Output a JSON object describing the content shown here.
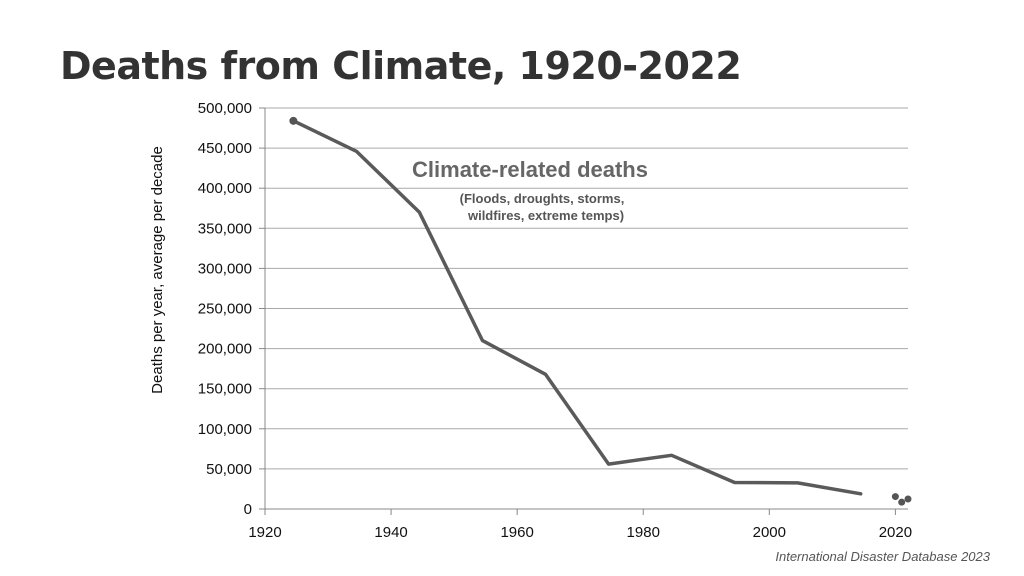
{
  "slide": {
    "title": "Deaths from Climate, 1920-2022",
    "source": "International Disaster Database 2023"
  },
  "annotation": {
    "title": "Climate-related deaths",
    "subtitle_line1": "(Floods, droughts, storms,",
    "subtitle_line2": "wildfires, extreme temps)"
  },
  "colors": {
    "line": "#5a5a5a",
    "grid": "#aaaaaa",
    "points": "#555555"
  },
  "chart_data": {
    "type": "line",
    "title": "Deaths from Climate, 1920-2022",
    "xlabel": "",
    "ylabel": "Deaths per year, average per decade",
    "xlim": [
      1920,
      2022
    ],
    "ylim": [
      0,
      500000
    ],
    "x_ticks": [
      1920,
      1940,
      1960,
      1980,
      2000,
      2020
    ],
    "y_ticks": [
      0,
      50000,
      100000,
      150000,
      200000,
      250000,
      300000,
      350000,
      400000,
      450000,
      500000
    ],
    "y_tick_labels": [
      "0",
      "50,000",
      "100,000",
      "150,000",
      "200,000",
      "250,000",
      "300,000",
      "350,000",
      "400,000",
      "450,000",
      "500,000"
    ],
    "x_tick_labels": [
      "1920",
      "1940",
      "1960",
      "1980",
      "2000",
      "2020"
    ],
    "grid": true,
    "series": [
      {
        "x": [
          1924.5,
          1934.5,
          1944.5,
          1954.5,
          1964.5,
          1974.5,
          1984.5,
          1994.5,
          2004.5,
          2014.5
        ],
        "values": [
          484000,
          446000,
          370000,
          210000,
          168000,
          56000,
          67000,
          33000,
          32500,
          19000
        ]
      }
    ],
    "points": [
      {
        "x": 2020,
        "y": 15500
      },
      {
        "x": 2021,
        "y": 8500
      },
      {
        "x": 2022,
        "y": 12500
      }
    ]
  }
}
